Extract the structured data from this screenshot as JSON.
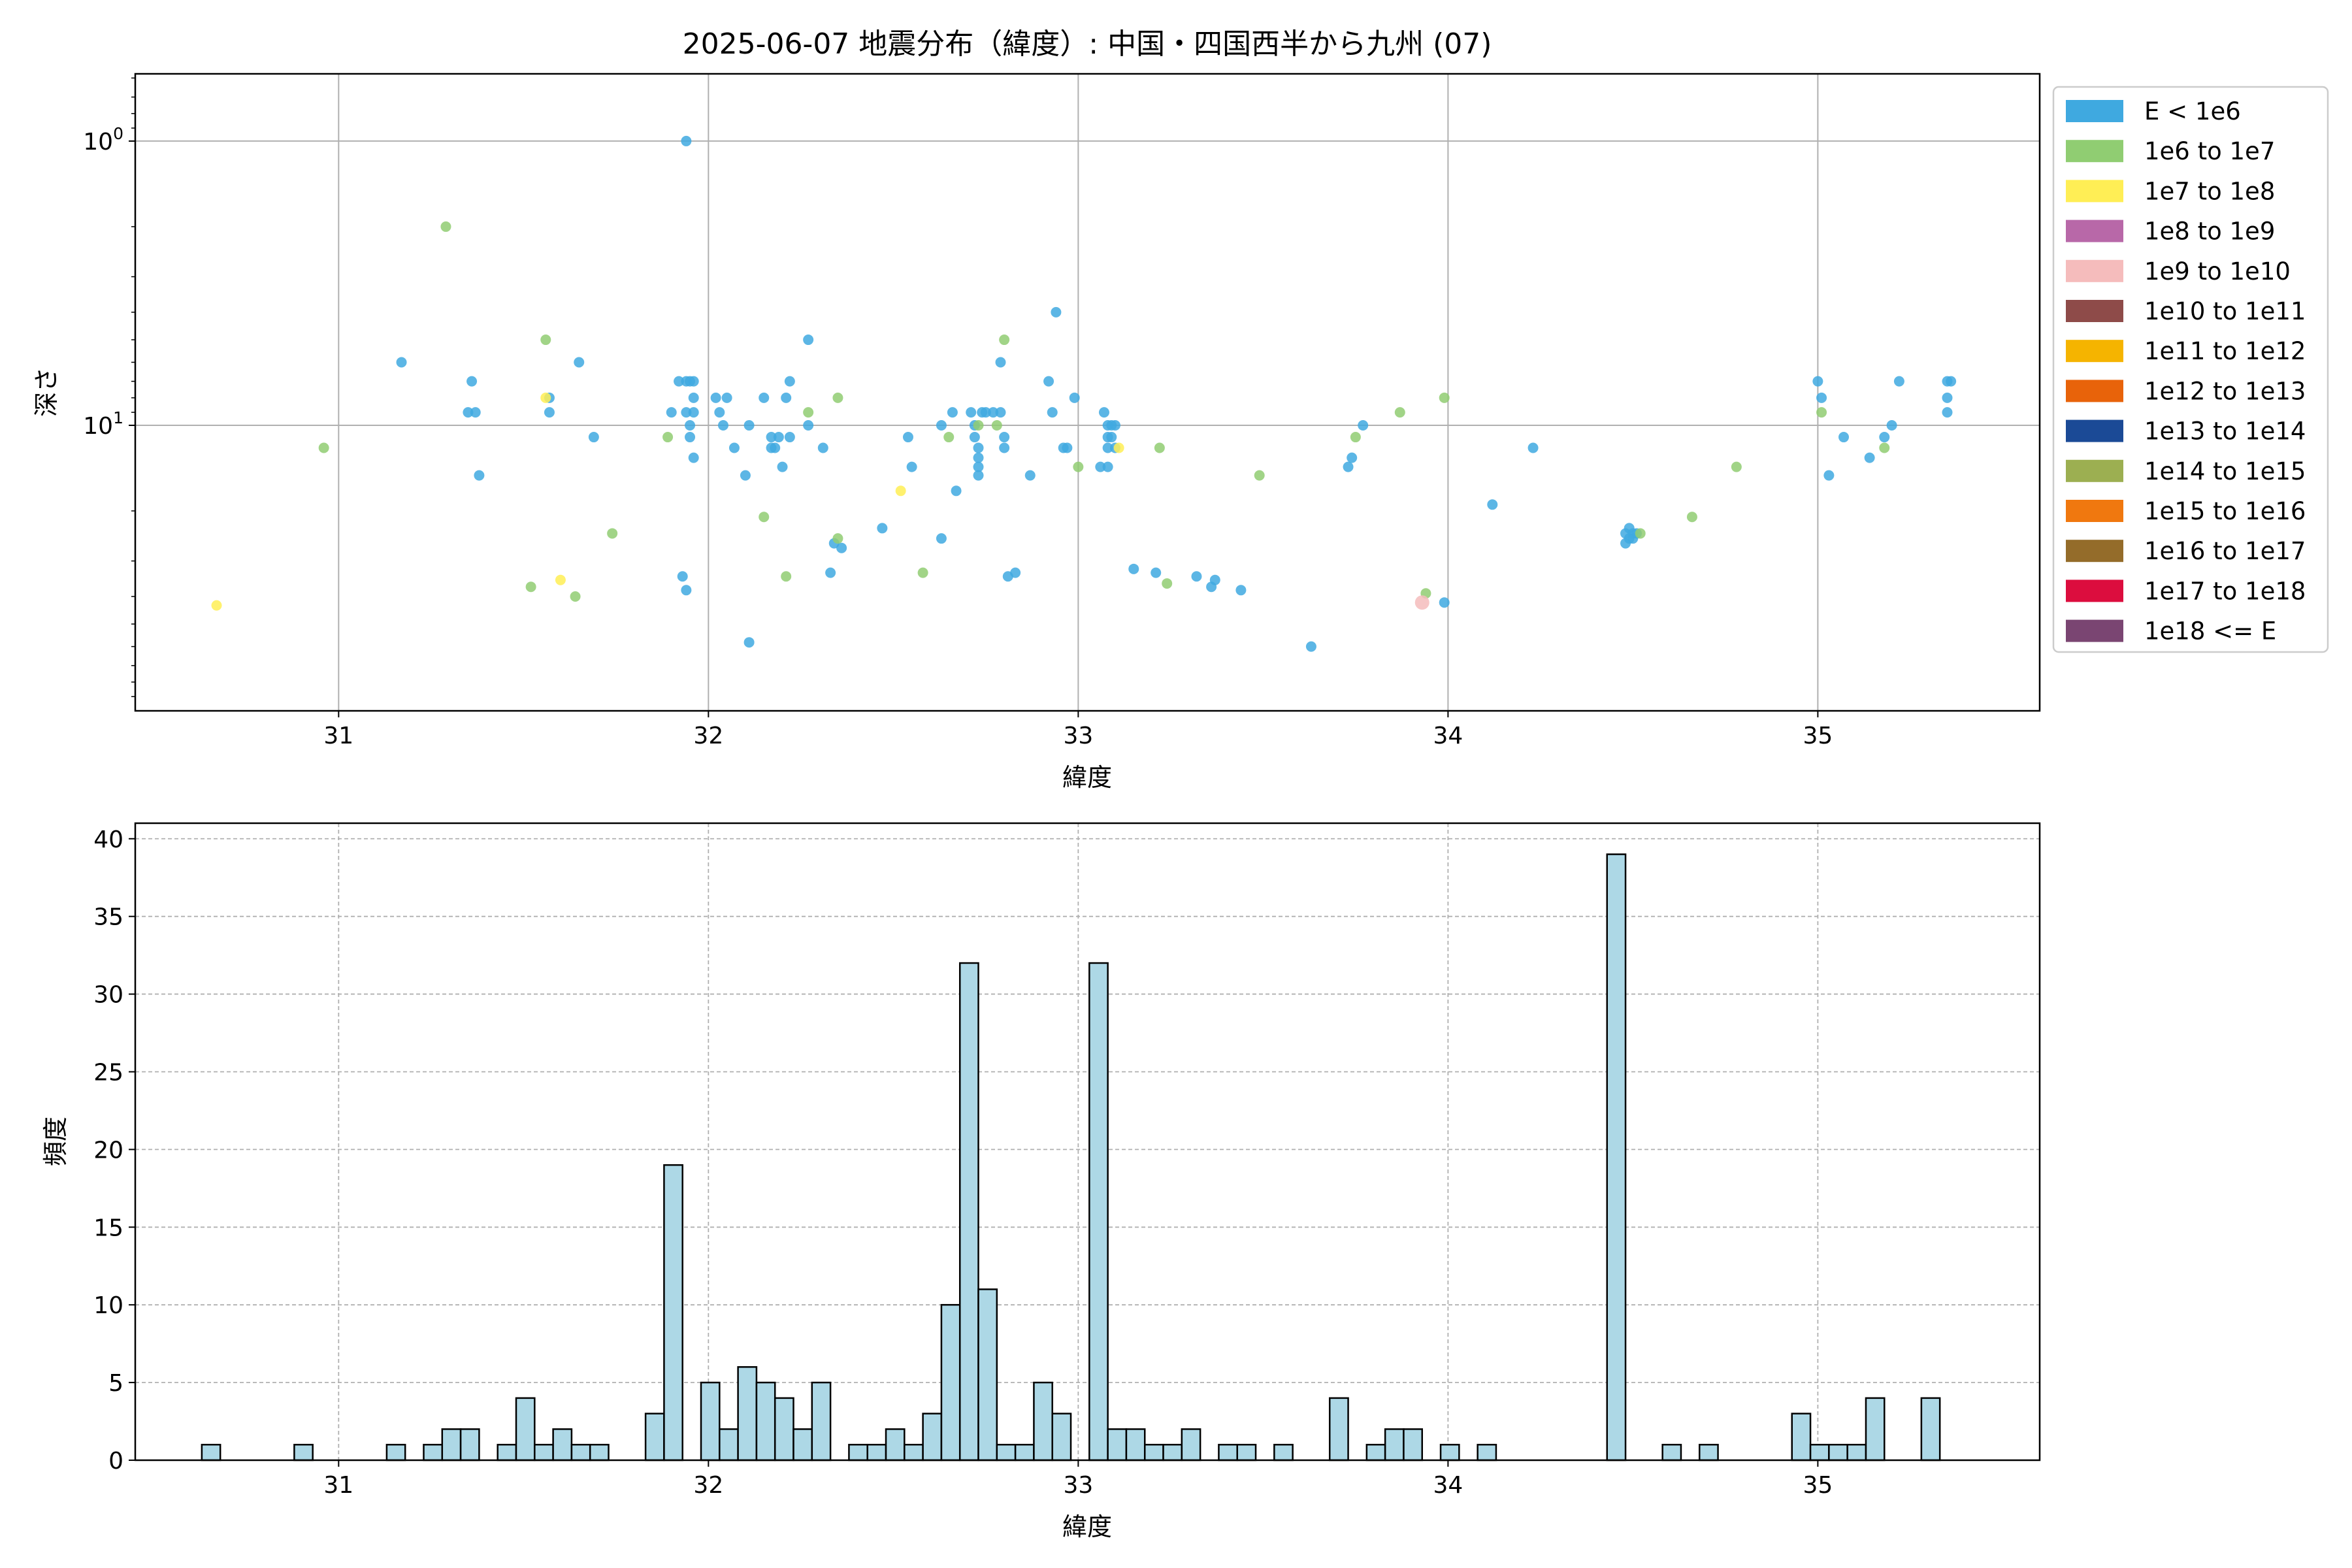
{
  "figure": {
    "title": "2025-06-07 地震分布（緯度）: 中国・四国西半から九州 (07)"
  },
  "chart_data": [
    {
      "type": "scatter",
      "xlabel": "緯度",
      "ylabel": "深さ",
      "xlim": [
        30.45,
        35.6
      ],
      "ylim": [
        0.58,
        101
      ],
      "y_scale": "log",
      "y_inverted": true,
      "x_ticks": [
        "31",
        "32",
        "33",
        "34",
        "35"
      ],
      "y_ticks": [
        {
          "value": 1,
          "base": "10",
          "exp": "0"
        },
        {
          "value": 10,
          "base": "10",
          "exp": "1"
        }
      ],
      "grid": true,
      "legend": {
        "placement": "outside-right",
        "entries": [
          {
            "label": "E < 1e6",
            "color": "#3fa9e0"
          },
          {
            "label": "1e6 to 1e7",
            "color": "#90cd72"
          },
          {
            "label": "1e7 to 1e8",
            "color": "#ffee55"
          },
          {
            "label": "1e8 to 1e9",
            "color": "#b868a8"
          },
          {
            "label": "1e9 to 1e10",
            "color": "#f5bcbc"
          },
          {
            "label": "1e10 to 1e11",
            "color": "#8e4b49"
          },
          {
            "label": "1e11 to 1e12",
            "color": "#f5b400"
          },
          {
            "label": "1e12 to 1e13",
            "color": "#e8630a"
          },
          {
            "label": "1e13 to 1e14",
            "color": "#1b4a96"
          },
          {
            "label": "1e14 to 1e15",
            "color": "#9caf51"
          },
          {
            "label": "1e15 to 1e16",
            "color": "#f0780f"
          },
          {
            "label": "1e16 to 1e17",
            "color": "#946c2a"
          },
          {
            "label": "1e17 to 1e18",
            "color": "#dc0d3e"
          },
          {
            "label": "1e18 <= E",
            "color": "#7a4572"
          }
        ]
      },
      "series": [
        {
          "class": 0,
          "points": [
            [
              31.94,
              1.0
            ],
            [
              31.17,
              6.0
            ],
            [
              31.36,
              7.0
            ],
            [
              31.35,
              9.0
            ],
            [
              31.37,
              9.0
            ],
            [
              31.38,
              15.0
            ],
            [
              31.57,
              8.0
            ],
            [
              31.57,
              9.0
            ],
            [
              31.65,
              6.0
            ],
            [
              31.69,
              11.0
            ],
            [
              31.9,
              9.0
            ],
            [
              31.92,
              7.0
            ],
            [
              31.94,
              7.0
            ],
            [
              31.95,
              7.0
            ],
            [
              31.96,
              7.0
            ],
            [
              31.96,
              8.0
            ],
            [
              31.94,
              9.0
            ],
            [
              31.96,
              9.0
            ],
            [
              31.95,
              10.0
            ],
            [
              31.95,
              11.0
            ],
            [
              31.96,
              13.0
            ],
            [
              31.93,
              34.0
            ],
            [
              31.94,
              38.0
            ],
            [
              32.02,
              8.0
            ],
            [
              32.05,
              8.0
            ],
            [
              32.03,
              9.0
            ],
            [
              32.04,
              10.0
            ],
            [
              32.07,
              12.0
            ],
            [
              32.1,
              15.0
            ],
            [
              32.11,
              10.0
            ],
            [
              32.15,
              8.0
            ],
            [
              32.17,
              11.0
            ],
            [
              32.17,
              12.0
            ],
            [
              32.18,
              12.0
            ],
            [
              32.19,
              11.0
            ],
            [
              32.2,
              14.0
            ],
            [
              32.21,
              8.0
            ],
            [
              32.22,
              7.0
            ],
            [
              32.22,
              11.0
            ],
            [
              32.27,
              5.0
            ],
            [
              32.27,
              10.0
            ],
            [
              32.31,
              12.0
            ],
            [
              32.33,
              33.0
            ],
            [
              32.34,
              26.0
            ],
            [
              32.36,
              27.0
            ],
            [
              32.11,
              58.0
            ],
            [
              32.47,
              23.0
            ],
            [
              32.54,
              11.0
            ],
            [
              32.55,
              14.0
            ],
            [
              32.63,
              10.0
            ],
            [
              32.63,
              25.0
            ],
            [
              32.66,
              9.0
            ],
            [
              32.67,
              17.0
            ],
            [
              32.71,
              9.0
            ],
            [
              32.72,
              10.0
            ],
            [
              32.72,
              11.0
            ],
            [
              32.73,
              12.0
            ],
            [
              32.73,
              13.0
            ],
            [
              32.73,
              14.0
            ],
            [
              32.73,
              15.0
            ],
            [
              32.74,
              9.0
            ],
            [
              32.75,
              9.0
            ],
            [
              32.77,
              9.0
            ],
            [
              32.79,
              9.0
            ],
            [
              32.8,
              11.0
            ],
            [
              32.8,
              12.0
            ],
            [
              32.79,
              6.0
            ],
            [
              32.81,
              34.0
            ],
            [
              32.83,
              33.0
            ],
            [
              32.87,
              15.0
            ],
            [
              32.92,
              7.0
            ],
            [
              32.93,
              9.0
            ],
            [
              32.94,
              4.0
            ],
            [
              32.96,
              12.0
            ],
            [
              32.97,
              12.0
            ],
            [
              32.99,
              8.0
            ],
            [
              33.07,
              9.0
            ],
            [
              33.08,
              10.0
            ],
            [
              33.08,
              11.0
            ],
            [
              33.08,
              12.0
            ],
            [
              33.09,
              10.0
            ],
            [
              33.09,
              11.0
            ],
            [
              33.1,
              10.0
            ],
            [
              33.1,
              12.0
            ],
            [
              33.06,
              14.0
            ],
            [
              33.08,
              14.0
            ],
            [
              33.15,
              32.0
            ],
            [
              33.21,
              33.0
            ],
            [
              33.32,
              34.0
            ],
            [
              33.36,
              37.0
            ],
            [
              33.37,
              35.0
            ],
            [
              33.44,
              38.0
            ],
            [
              33.63,
              60.0
            ],
            [
              33.73,
              14.0
            ],
            [
              33.74,
              13.0
            ],
            [
              33.77,
              10.0
            ],
            [
              33.99,
              42.0
            ],
            [
              34.12,
              19.0
            ],
            [
              34.23,
              12.0
            ],
            [
              34.48,
              24.0
            ],
            [
              34.48,
              26.0
            ],
            [
              34.49,
              23.0
            ],
            [
              34.5,
              24.0
            ],
            [
              34.5,
              25.0
            ],
            [
              34.51,
              24.0
            ],
            [
              34.49,
              25.0
            ],
            [
              35.0,
              7.0
            ],
            [
              35.01,
              8.0
            ],
            [
              35.03,
              15.0
            ],
            [
              35.07,
              11.0
            ],
            [
              35.14,
              13.0
            ],
            [
              35.18,
              11.0
            ],
            [
              35.2,
              10.0
            ],
            [
              35.22,
              7.0
            ],
            [
              35.35,
              7.0
            ],
            [
              35.36,
              7.0
            ],
            [
              35.35,
              8.0
            ],
            [
              35.35,
              9.0
            ]
          ]
        },
        {
          "class": 1,
          "points": [
            [
              31.29,
              2.0
            ],
            [
              30.96,
              12.0
            ],
            [
              31.56,
              5.0
            ],
            [
              31.52,
              37.0
            ],
            [
              31.64,
              40.0
            ],
            [
              31.74,
              24.0
            ],
            [
              31.89,
              11.0
            ],
            [
              32.15,
              21.0
            ],
            [
              32.21,
              34.0
            ],
            [
              32.27,
              9.0
            ],
            [
              32.35,
              8.0
            ],
            [
              32.35,
              25.0
            ],
            [
              32.58,
              33.0
            ],
            [
              32.65,
              11.0
            ],
            [
              32.73,
              10.0
            ],
            [
              32.78,
              10.0
            ],
            [
              32.8,
              5.0
            ],
            [
              33.0,
              14.0
            ],
            [
              33.22,
              12.0
            ],
            [
              33.24,
              36.0
            ],
            [
              33.49,
              15.0
            ],
            [
              33.75,
              11.0
            ],
            [
              33.87,
              9.0
            ],
            [
              33.94,
              39.0
            ],
            [
              33.99,
              8.0
            ],
            [
              34.52,
              24.0
            ],
            [
              34.66,
              21.0
            ],
            [
              34.78,
              14.0
            ],
            [
              35.01,
              9.0
            ],
            [
              35.18,
              12.0
            ]
          ]
        },
        {
          "class": 2,
          "points": [
            [
              30.67,
              43.0
            ],
            [
              31.56,
              8.0
            ],
            [
              31.6,
              35.0
            ],
            [
              32.52,
              17.0
            ],
            [
              33.11,
              12.0
            ]
          ]
        },
        {
          "class": 4,
          "points": [
            [
              33.93,
              42.0
            ]
          ]
        }
      ]
    },
    {
      "type": "bar",
      "subtype": "histogram",
      "xlabel": "緯度",
      "ylabel": "頻度",
      "xlim": [
        30.45,
        35.6
      ],
      "ylim": [
        0,
        41
      ],
      "x_ticks": [
        "31",
        "32",
        "33",
        "34",
        "35"
      ],
      "y_ticks": [
        "0",
        "5",
        "10",
        "15",
        "20",
        "25",
        "30",
        "35",
        "40"
      ],
      "grid": "dashed",
      "bar_color": "#add8e6",
      "bin_width": 0.05,
      "bins": [
        [
          30.655,
          1
        ],
        [
          30.905,
          1
        ],
        [
          31.155,
          1
        ],
        [
          31.255,
          1
        ],
        [
          31.305,
          2
        ],
        [
          31.355,
          2
        ],
        [
          31.455,
          1
        ],
        [
          31.505,
          4
        ],
        [
          31.555,
          1
        ],
        [
          31.605,
          2
        ],
        [
          31.655,
          1
        ],
        [
          31.705,
          1
        ],
        [
          31.855,
          3
        ],
        [
          31.905,
          19
        ],
        [
          32.005,
          5
        ],
        [
          32.055,
          2
        ],
        [
          32.105,
          6
        ],
        [
          32.155,
          5
        ],
        [
          32.205,
          4
        ],
        [
          32.255,
          2
        ],
        [
          32.305,
          5
        ],
        [
          32.405,
          1
        ],
        [
          32.455,
          1
        ],
        [
          32.505,
          2
        ],
        [
          32.555,
          1
        ],
        [
          32.605,
          3
        ],
        [
          32.655,
          10
        ],
        [
          32.705,
          32
        ],
        [
          32.755,
          11
        ],
        [
          32.805,
          1
        ],
        [
          32.855,
          1
        ],
        [
          32.905,
          5
        ],
        [
          32.955,
          3
        ],
        [
          33.055,
          32
        ],
        [
          33.105,
          2
        ],
        [
          33.155,
          2
        ],
        [
          33.205,
          1
        ],
        [
          33.255,
          1
        ],
        [
          33.305,
          2
        ],
        [
          33.405,
          1
        ],
        [
          33.455,
          1
        ],
        [
          33.555,
          1
        ],
        [
          33.705,
          4
        ],
        [
          33.805,
          1
        ],
        [
          33.855,
          2
        ],
        [
          33.905,
          2
        ],
        [
          34.005,
          1
        ],
        [
          34.105,
          1
        ],
        [
          34.455,
          39
        ],
        [
          34.605,
          1
        ],
        [
          34.705,
          1
        ],
        [
          34.955,
          3
        ],
        [
          35.005,
          1
        ],
        [
          35.055,
          1
        ],
        [
          35.105,
          1
        ],
        [
          35.155,
          4
        ],
        [
          35.305,
          4
        ]
      ]
    }
  ]
}
